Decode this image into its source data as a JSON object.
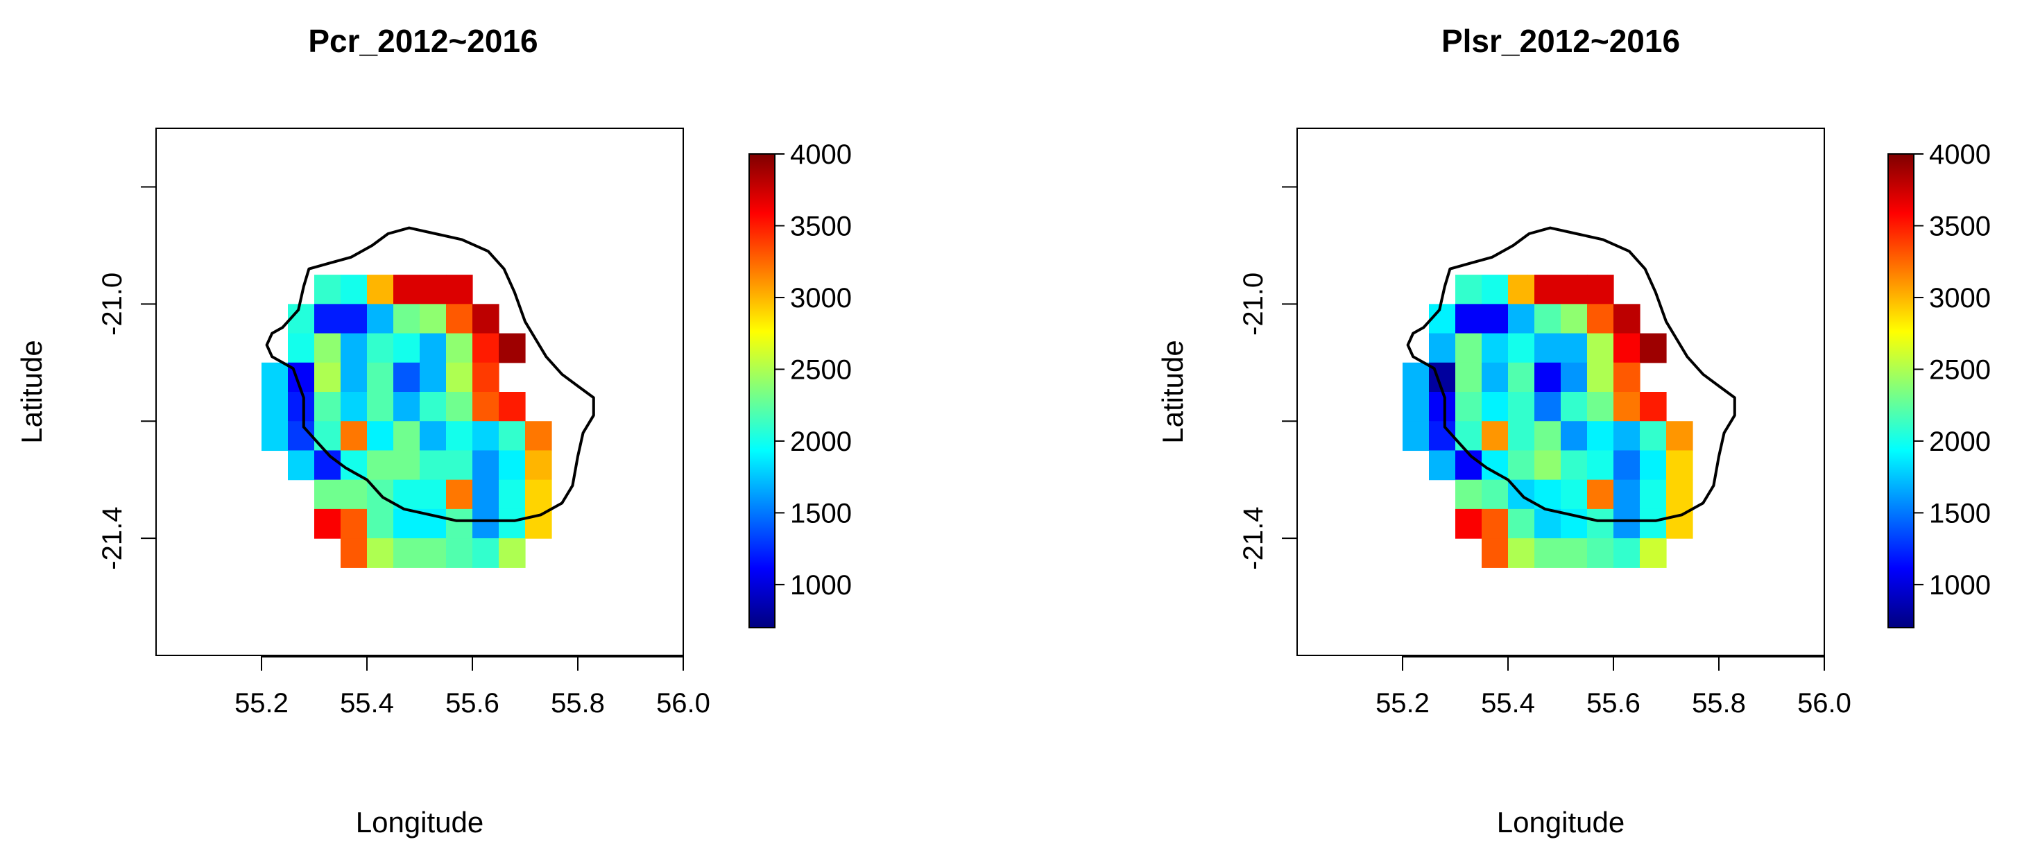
{
  "colormap": [
    "#00007f",
    "#0000ff",
    "#007fff",
    "#00ffff",
    "#7fff7f",
    "#ffff00",
    "#ff7f00",
    "#ff0000",
    "#7f0000"
  ],
  "chart_data": [
    {
      "type": "heatmap",
      "title": "Pcr_2012~2016",
      "xlabel": "Longitude",
      "ylabel": "Latitude",
      "xlim": [
        55.0,
        56.0
      ],
      "ylim": [
        -21.6,
        -20.7
      ],
      "x_ticks": [
        "55.2",
        "55.4",
        "55.6",
        "55.8",
        "56.0"
      ],
      "y_ticks": [
        "-21.0",
        "-21.4"
      ],
      "colorbar_range": [
        700,
        4000
      ],
      "colorbar_ticks": [
        "1000",
        "1500",
        "2000",
        "2500",
        "3000",
        "3500",
        "4000"
      ],
      "grid": {
        "lon_start": 55.2,
        "lat_start": -20.9,
        "cell_deg": 0.05,
        "values": [
          [
            null,
            null,
            null,
            null,
            null,
            null,
            null,
            null,
            null,
            null,
            null,
            null,
            null
          ],
          [
            null,
            null,
            2100,
            2000,
            3000,
            3700,
            3700,
            3700,
            null,
            null,
            null,
            null,
            null
          ],
          [
            null,
            2050,
            1200,
            1200,
            1700,
            2300,
            2400,
            3300,
            3800,
            null,
            null,
            null,
            null
          ],
          [
            null,
            2000,
            2400,
            1700,
            2100,
            2000,
            1700,
            2400,
            3500,
            3900,
            null,
            null,
            null
          ],
          [
            1800,
            1100,
            2500,
            1700,
            2200,
            1400,
            1700,
            2500,
            3400,
            null,
            null,
            null,
            null
          ],
          [
            1800,
            1200,
            2200,
            1800,
            2200,
            1700,
            2100,
            2300,
            3300,
            3500,
            null,
            null,
            null
          ],
          [
            1800,
            1300,
            2100,
            3200,
            1900,
            2300,
            1700,
            2000,
            1800,
            2100,
            3200,
            null,
            null
          ],
          [
            null,
            1800,
            1200,
            2000,
            2300,
            2300,
            2100,
            2100,
            1600,
            1900,
            3000,
            null,
            null
          ],
          [
            null,
            null,
            2300,
            2300,
            2200,
            2000,
            2000,
            3200,
            1600,
            2000,
            2900,
            null,
            null
          ],
          [
            null,
            null,
            3600,
            3300,
            2200,
            1900,
            1900,
            2200,
            1600,
            2000,
            2900,
            null,
            null
          ],
          [
            null,
            null,
            null,
            3300,
            2500,
            2300,
            2300,
            2200,
            2100,
            2500,
            null,
            null,
            null
          ],
          [
            null,
            null,
            null,
            null,
            null,
            null,
            null,
            null,
            null,
            null,
            null,
            null,
            null
          ]
        ]
      }
    },
    {
      "type": "heatmap",
      "title": "Plsr_2012~2016",
      "xlabel": "Longitude",
      "ylabel": "Latitude",
      "xlim": [
        55.0,
        56.0
      ],
      "ylim": [
        -21.6,
        -20.7
      ],
      "x_ticks": [
        "55.2",
        "55.4",
        "55.6",
        "55.8",
        "56.0"
      ],
      "y_ticks": [
        "-21.0",
        "-21.4"
      ],
      "colorbar_range": [
        700,
        4000
      ],
      "colorbar_ticks": [
        "1000",
        "1500",
        "2000",
        "2500",
        "3000",
        "3500",
        "4000"
      ],
      "grid": {
        "lon_start": 55.2,
        "lat_start": -20.9,
        "cell_deg": 0.05,
        "values": [
          [
            null,
            null,
            null,
            null,
            null,
            null,
            null,
            null,
            null,
            null,
            null,
            null,
            null
          ],
          [
            null,
            null,
            2100,
            2000,
            3000,
            3700,
            3700,
            3700,
            null,
            null,
            null,
            null,
            null
          ],
          [
            null,
            1900,
            1100,
            1100,
            1700,
            2200,
            2400,
            3300,
            3800,
            null,
            null,
            null,
            null
          ],
          [
            null,
            1700,
            2300,
            1800,
            2000,
            1700,
            1700,
            2500,
            3600,
            3900,
            null,
            null,
            null
          ],
          [
            1700,
            800,
            2300,
            1700,
            2200,
            1100,
            1600,
            2500,
            3300,
            null,
            null,
            null,
            null
          ],
          [
            1700,
            1100,
            2200,
            1900,
            2100,
            1500,
            2100,
            2300,
            3200,
            3500,
            null,
            null,
            null
          ],
          [
            1700,
            1200,
            2100,
            3100,
            2100,
            2300,
            1600,
            1900,
            1700,
            2100,
            3100,
            null,
            null
          ],
          [
            null,
            1700,
            1100,
            1900,
            2200,
            2400,
            2100,
            2000,
            1500,
            1900,
            2900,
            null,
            null
          ],
          [
            null,
            null,
            2300,
            2200,
            1800,
            1900,
            2000,
            3200,
            1600,
            2000,
            2900,
            null,
            null
          ],
          [
            null,
            null,
            3600,
            3300,
            2200,
            1800,
            1900,
            2100,
            1600,
            2000,
            2900,
            null,
            null
          ],
          [
            null,
            null,
            null,
            3300,
            2500,
            2300,
            2300,
            2200,
            2100,
            2600,
            null,
            null,
            null
          ],
          [
            null,
            null,
            null,
            null,
            null,
            null,
            null,
            null,
            null,
            null,
            null,
            null,
            null
          ]
        ]
      }
    }
  ]
}
